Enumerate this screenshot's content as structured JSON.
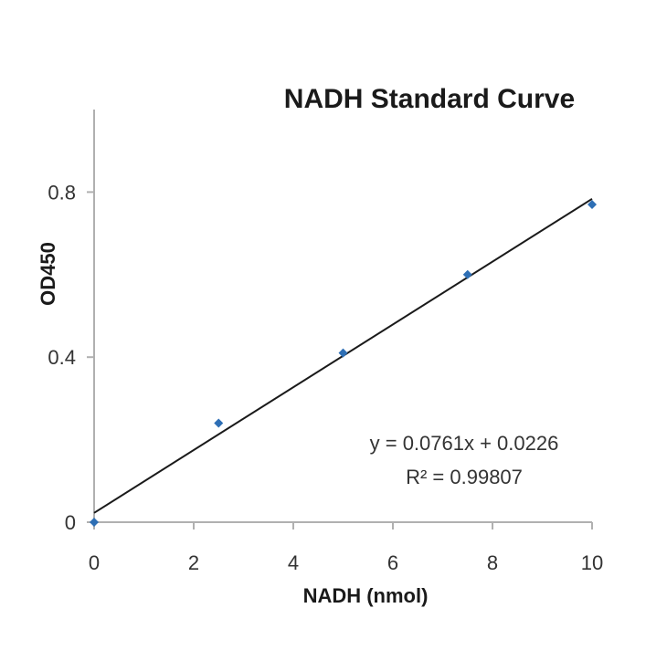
{
  "chart_data": {
    "type": "scatter",
    "title": "NADH Standard Curve",
    "xlabel": "NADH (nmol)",
    "ylabel": "OD450",
    "xlim": [
      0,
      10
    ],
    "ylim": [
      0,
      1.0
    ],
    "x_ticks": [
      0,
      2,
      4,
      6,
      8,
      10
    ],
    "x_tick_labels": [
      "0",
      "2",
      "4",
      "6",
      "8",
      "10"
    ],
    "y_ticks": [
      0,
      0.4,
      0.8
    ],
    "y_tick_labels": [
      "0",
      "0.4",
      "0.8"
    ],
    "grid": false,
    "series": [
      {
        "x": [
          0,
          2.5,
          5,
          7.5,
          10
        ],
        "y": [
          0.0,
          0.24,
          0.41,
          0.6,
          0.77
        ],
        "color": "#2e6fb5"
      }
    ],
    "trendline": {
      "slope": 0.0761,
      "intercept": 0.0226,
      "color": "#1a1a1a"
    },
    "annotations": {
      "equation": "y = 0.0761x + 0.0226",
      "r_squared": "R² = 0.99807"
    }
  }
}
